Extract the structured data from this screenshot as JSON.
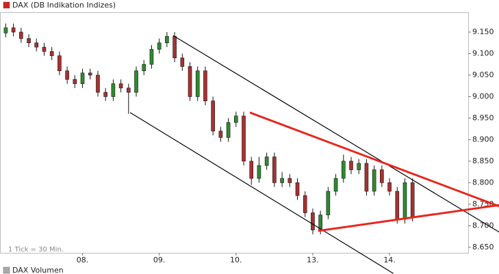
{
  "chart_data": {
    "type": "candlestick",
    "title": "DAX (DB Indikation Indizes)",
    "note": "1 Tick = 30 Min.",
    "subchart_title": "DAX Volumen",
    "up_color": "#2e8b2e",
    "down_color": "#a83232",
    "xlim": [
      -0.75,
      60.25
    ],
    "xticks": [
      {
        "value": 10,
        "label": "08."
      },
      {
        "value": 20,
        "label": "09."
      },
      {
        "value": 30,
        "label": "10."
      },
      {
        "value": 40,
        "label": "13."
      },
      {
        "value": 50,
        "label": "14."
      }
    ],
    "ylim": [
      8637,
      9196
    ],
    "yticks": [
      {
        "value": 9150,
        "label": "9.150"
      },
      {
        "value": 9100,
        "label": "9.100"
      },
      {
        "value": 9050,
        "label": "9.050"
      },
      {
        "value": 9000,
        "label": "9.000"
      },
      {
        "value": 8950,
        "label": "8.950"
      },
      {
        "value": 8900,
        "label": "8.900"
      },
      {
        "value": 8850,
        "label": "8.850"
      },
      {
        "value": 8800,
        "label": "8.800"
      },
      {
        "value": 8750,
        "label": "8.750"
      },
      {
        "value": 8700,
        "label": "8.700"
      },
      {
        "value": 8650,
        "label": "8.650"
      }
    ],
    "open": [
      9148,
      9160,
      9150,
      9135,
      9125,
      9115,
      9105,
      9095,
      9060,
      9040,
      9030,
      9055,
      9050,
      9010,
      9000,
      9030,
      9020,
      9010,
      9060,
      9075,
      9110,
      9125,
      9140,
      9090,
      9070,
      9000,
      9060,
      8990,
      8920,
      8905,
      8940,
      8955,
      8850,
      8810,
      8840,
      8860,
      8800,
      8810,
      8800,
      8770,
      8730,
      8690,
      8725,
      8780,
      8810,
      8850,
      8830,
      8845,
      8780,
      8830,
      8800,
      8780,
      8715,
      8800
    ],
    "high": [
      9170,
      9170,
      9160,
      9145,
      9135,
      9125,
      9115,
      9105,
      9070,
      9050,
      9065,
      9065,
      9060,
      9020,
      9040,
      9040,
      9030,
      9070,
      9085,
      9120,
      9135,
      9150,
      9150,
      9100,
      9080,
      9070,
      9070,
      9000,
      8930,
      8950,
      8965,
      8965,
      8860,
      8860,
      8870,
      8870,
      8825,
      8820,
      8810,
      8780,
      8740,
      8735,
      8790,
      8820,
      8865,
      8860,
      8855,
      8855,
      8840,
      8840,
      8810,
      8790,
      8810,
      8810
    ],
    "low": [
      9138,
      9140,
      9125,
      9115,
      9105,
      9095,
      9085,
      9050,
      9030,
      9020,
      9020,
      9040,
      9000,
      8990,
      8990,
      9010,
      8960,
      9000,
      9050,
      9065,
      9100,
      9115,
      9080,
      9060,
      8990,
      8990,
      8980,
      8910,
      8895,
      8895,
      8930,
      8840,
      8795,
      8800,
      8830,
      8790,
      8790,
      8790,
      8760,
      8720,
      8680,
      8680,
      8715,
      8770,
      8800,
      8820,
      8820,
      8770,
      8770,
      8790,
      8770,
      8705,
      8705,
      8710
    ],
    "close": [
      9160,
      9150,
      9135,
      9125,
      9115,
      9105,
      9095,
      9060,
      9040,
      9030,
      9055,
      9050,
      9010,
      9000,
      9030,
      9020,
      9010,
      9060,
      9075,
      9110,
      9125,
      9140,
      9090,
      9070,
      9000,
      9060,
      8990,
      8920,
      8905,
      8940,
      8955,
      8850,
      8810,
      8840,
      8860,
      8800,
      8810,
      8800,
      8770,
      8730,
      8690,
      8725,
      8780,
      8810,
      8850,
      8830,
      8845,
      8780,
      8830,
      8800,
      8780,
      8715,
      8800,
      8720
    ],
    "trendlines": [
      {
        "color": "#000000",
        "x": [
          21.8,
          64.3
        ],
        "y": [
          9142,
          8685
        ]
      },
      {
        "color": "#000000",
        "x": [
          16.2,
          50.5
        ],
        "y": [
          8963,
          8589
        ]
      },
      {
        "color": "#e8261e",
        "x": [
          31.8,
          64.3
        ],
        "y": [
          8963,
          8745
        ]
      },
      {
        "color": "#e8261e",
        "x": [
          40.7,
          64.3
        ],
        "y": [
          8688,
          8748
        ]
      }
    ]
  }
}
